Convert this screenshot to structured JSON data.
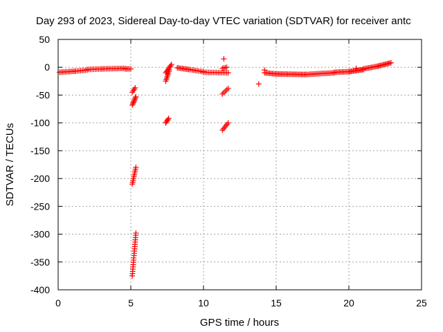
{
  "chart_data": {
    "type": "scatter",
    "title": "Day 293 of 2023, Sidereal Day-to-day VTEC variation (SDTVAR) for receiver antc",
    "xlabel": "GPS time / hours",
    "ylabel": "SDTVAR / TECUs",
    "xlim": [
      0,
      25
    ],
    "ylim": [
      -400,
      50
    ],
    "x_ticks": [
      0,
      5,
      10,
      15,
      20,
      25
    ],
    "y_ticks": [
      50,
      0,
      -50,
      -100,
      -150,
      -200,
      -250,
      -300,
      -350,
      -400
    ],
    "grid": true,
    "marker": "+",
    "color": "#ff0000",
    "segments": [
      {
        "x0": 0.1,
        "x1": 1.2,
        "y0": -9,
        "y1": -7,
        "n": 12
      },
      {
        "x0": 1.2,
        "x1": 2.0,
        "y0": -7,
        "y1": -5,
        "n": 8
      },
      {
        "x0": 2.0,
        "x1": 3.0,
        "y0": -4,
        "y1": -3,
        "n": 10
      },
      {
        "x0": 3.0,
        "x1": 4.6,
        "y0": -3,
        "y1": -2,
        "n": 16
      },
      {
        "x0": 4.6,
        "x1": 5.0,
        "y0": -3,
        "y1": -3,
        "n": 5
      },
      {
        "x0": 5.1,
        "x1": 5.3,
        "y0": -45,
        "y1": -37,
        "n": 4
      },
      {
        "x0": 5.1,
        "x1": 5.35,
        "y0": -68,
        "y1": -53,
        "n": 8
      },
      {
        "x0": 5.1,
        "x1": 5.35,
        "y0": -210,
        "y1": -180,
        "n": 10
      },
      {
        "x0": 5.1,
        "x1": 5.35,
        "y0": -375,
        "y1": -298,
        "n": 20
      },
      {
        "x0": 7.4,
        "x1": 7.6,
        "y0": -100,
        "y1": -92,
        "n": 5
      },
      {
        "x0": 7.4,
        "x1": 7.65,
        "y0": -25,
        "y1": -5,
        "n": 8
      },
      {
        "x0": 7.4,
        "x1": 7.8,
        "y0": -10,
        "y1": 5,
        "n": 8
      },
      {
        "x0": 8.2,
        "x1": 9.0,
        "y0": -1,
        "y1": -4,
        "n": 10
      },
      {
        "x0": 9.0,
        "x1": 10.0,
        "y0": -4,
        "y1": -8,
        "n": 10
      },
      {
        "x0": 10.0,
        "x1": 11.7,
        "y0": -9,
        "y1": -10,
        "n": 16
      },
      {
        "x0": 11.3,
        "x1": 11.7,
        "y0": -48,
        "y1": -38,
        "n": 5
      },
      {
        "x0": 11.3,
        "x1": 11.7,
        "y0": -113,
        "y1": -100,
        "n": 6
      },
      {
        "x0": 11.3,
        "x1": 11.6,
        "y0": -2,
        "y1": 0,
        "n": 4
      },
      {
        "x0": 14.2,
        "x1": 15.0,
        "y0": -10,
        "y1": -12,
        "n": 10
      },
      {
        "x0": 15.0,
        "x1": 17.0,
        "y0": -12,
        "y1": -13,
        "n": 24
      },
      {
        "x0": 17.0,
        "x1": 19.0,
        "y0": -13,
        "y1": -10,
        "n": 22
      },
      {
        "x0": 19.0,
        "x1": 20.0,
        "y0": -9,
        "y1": -8,
        "n": 12
      },
      {
        "x0": 20.0,
        "x1": 21.0,
        "y0": -8,
        "y1": -4,
        "n": 14
      },
      {
        "x0": 21.0,
        "x1": 22.0,
        "y0": -3,
        "y1": 2,
        "n": 12
      },
      {
        "x0": 22.0,
        "x1": 22.9,
        "y0": 2,
        "y1": 8,
        "n": 12
      }
    ],
    "points": [
      {
        "x": 11.4,
        "y": 15
      },
      {
        "x": 13.8,
        "y": -30
      },
      {
        "x": 14.2,
        "y": -5
      },
      {
        "x": 20.5,
        "y": -2
      }
    ]
  }
}
